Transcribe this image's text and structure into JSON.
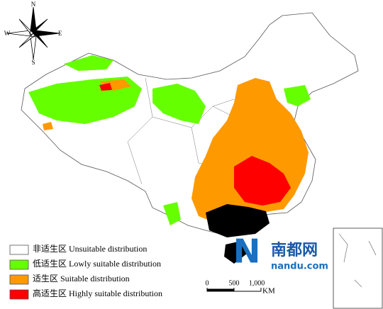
{
  "compass": {
    "north": "N",
    "south": "S",
    "west": "W",
    "east": "E"
  },
  "legend": [
    {
      "label": "非适生区 Unsuitable distribution",
      "color": "#ffffff"
    },
    {
      "label": "低适生区 Lowly suitable distribution",
      "color": "#66ff00"
    },
    {
      "label": "适生区 Suitable distribution",
      "color": "#ff9900"
    },
    {
      "label": "高适生区 Highly suitable distribution",
      "color": "#ff0000"
    }
  ],
  "scale_bar": {
    "labels": [
      "0",
      "500",
      "1,000"
    ],
    "unit": "KM"
  },
  "watermark": {
    "logo": "N",
    "name": "南都网",
    "site": "nandu.com"
  }
}
